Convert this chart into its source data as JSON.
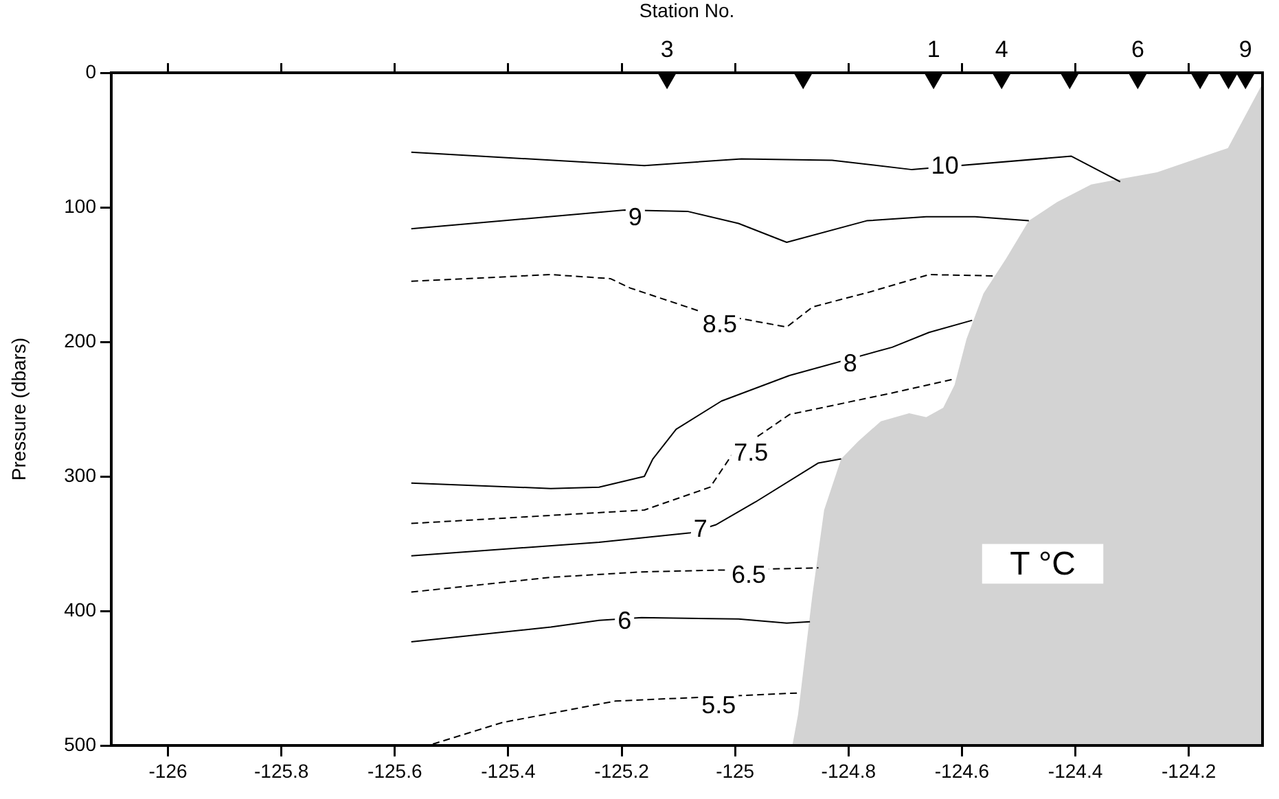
{
  "chart_data": {
    "type": "line",
    "x2label": "Station No.",
    "ylabel": "Pressure (dbars)",
    "xlim": [
      -126.1,
      -124.07
    ],
    "ylim": [
      500,
      0
    ],
    "xticks": [
      -126,
      -125.8,
      -125.6,
      -125.4,
      -125.2,
      -125,
      -124.8,
      -124.6,
      -124.4,
      -124.2
    ],
    "yticks": [
      0,
      100,
      200,
      300,
      400,
      500
    ],
    "grid": false,
    "legend": false,
    "series": [
      {
        "type": "line",
        "color": "#000000",
        "line_style": "solid",
        "x": [
          -125.571,
          -125.16,
          -124.989,
          -124.829,
          -124.688,
          -124.407,
          -124.321
        ],
        "values": [
          59,
          69,
          64,
          65,
          72,
          62,
          81
        ]
      },
      {
        "type": "line",
        "color": "#000000",
        "line_style": "solid",
        "x": [
          -125.571,
          -125.195,
          -125.084,
          -124.994,
          -124.909,
          -124.768,
          -124.663,
          -124.577,
          -124.482
        ],
        "values": [
          116,
          102,
          103,
          112,
          126,
          110,
          107,
          107,
          110
        ]
      },
      {
        "type": "line",
        "color": "#000000",
        "line_style": "dashed",
        "x": [
          -125.571,
          -125.325,
          -125.22,
          -125.185,
          -125.064,
          -124.909,
          -124.863,
          -124.763,
          -124.658,
          -124.542
        ],
        "values": [
          155,
          150,
          153,
          160,
          177,
          189,
          174,
          163,
          150,
          151
        ]
      },
      {
        "type": "line",
        "color": "#000000",
        "line_style": "solid",
        "x": [
          -125.571,
          -125.325,
          -125.24,
          -125.16,
          -125.145,
          -125.104,
          -125.024,
          -124.904,
          -124.723,
          -124.658,
          -124.582
        ],
        "values": [
          305,
          309,
          308,
          300,
          287,
          265,
          244,
          225,
          204,
          193,
          184
        ]
      },
      {
        "type": "line",
        "color": "#000000",
        "line_style": "dashed",
        "x": [
          -125.571,
          -125.16,
          -125.044,
          -125.004,
          -124.904,
          -124.723,
          -124.617
        ],
        "values": [
          335,
          325,
          308,
          283,
          254,
          238,
          228
        ]
      },
      {
        "type": "line",
        "color": "#000000",
        "line_style": "solid",
        "x": [
          -125.571,
          -125.24,
          -125.079,
          -125.034,
          -124.964,
          -124.853,
          -124.813
        ],
        "values": [
          359,
          349,
          342,
          336,
          319,
          290,
          287
        ]
      },
      {
        "type": "line",
        "color": "#000000",
        "line_style": "dashed",
        "x": [
          -125.571,
          -125.325,
          -125.165,
          -124.853
        ],
        "values": [
          386,
          375,
          371,
          368
        ]
      },
      {
        "type": "line",
        "color": "#000000",
        "line_style": "solid",
        "x": [
          -125.571,
          -125.325,
          -125.24,
          -125.165,
          -124.994,
          -124.909,
          -124.868
        ],
        "values": [
          423,
          412,
          407,
          405,
          406,
          409,
          408
        ]
      },
      {
        "type": "line",
        "color": "#000000",
        "line_style": "dashed",
        "x": [
          -125.533,
          -125.411,
          -125.211,
          -124.889
        ],
        "values": [
          499,
          483,
          467,
          461
        ]
      },
      {
        "type": "area",
        "color": "#d3d3d3",
        "x": [
          -124.899,
          -124.889,
          -124.864,
          -124.843,
          -124.813,
          -124.783,
          -124.743,
          -124.693,
          -124.663,
          -124.633,
          -124.613,
          -124.592,
          -124.562,
          -124.522,
          -124.482,
          -124.432,
          -124.372,
          -124.321,
          -124.256,
          -124.131,
          -124.07,
          -124.07
        ],
        "values": [
          500,
          477,
          389,
          325,
          287,
          274,
          259,
          253,
          256,
          249,
          232,
          198,
          164,
          138,
          110,
          96,
          83,
          79,
          74,
          56,
          8,
          500
        ]
      },
      {
        "type": "scatter",
        "color": "#000000",
        "marker": "triangle",
        "x": [
          -125.12,
          -124.88,
          -124.65,
          -124.53,
          -124.41,
          -124.29,
          -124.18,
          -124.13,
          -124.1
        ],
        "values": [
          0,
          0,
          0,
          0,
          0,
          0,
          0,
          0,
          0
        ]
      }
    ],
    "annotations": [
      {
        "text": "3",
        "x": -125.12,
        "y": 0
      },
      {
        "text": "1",
        "x": -124.65,
        "y": 0
      },
      {
        "text": "4",
        "x": -124.53,
        "y": 0
      },
      {
        "text": "6",
        "x": -124.29,
        "y": 0
      },
      {
        "text": "9",
        "x": -124.1,
        "y": 0
      },
      {
        "text": "10",
        "x": -124.63,
        "y": 69
      },
      {
        "text": "9",
        "x": -125.176,
        "y": 107
      },
      {
        "text": "8.5",
        "x": -125.027,
        "y": 187
      },
      {
        "text": "8",
        "x": -124.797,
        "y": 216
      },
      {
        "text": "7.5",
        "x": -124.972,
        "y": 282
      },
      {
        "text": "7",
        "x": -125.061,
        "y": 339
      },
      {
        "text": "6.5",
        "x": -124.976,
        "y": 373
      },
      {
        "text": "6",
        "x": -125.195,
        "y": 407
      },
      {
        "text": "5.5",
        "x": -125.029,
        "y": 470
      },
      "T °C"
    ]
  }
}
